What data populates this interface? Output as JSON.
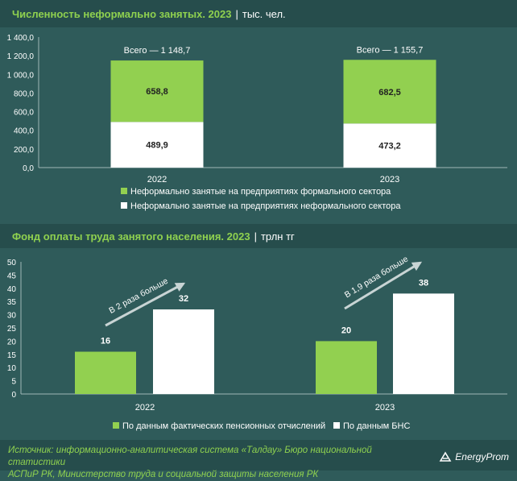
{
  "chart1": {
    "title": "Численность неформально занятых. 2023",
    "unit": "тыс. чел.",
    "chart_data": {
      "type": "bar",
      "stacked": true,
      "categories": [
        "2022",
        "2023"
      ],
      "series": [
        {
          "name": "Неформально занятые на предприятиях неформального сектора",
          "values": [
            489.9,
            473.2
          ],
          "color": "#ffffff"
        },
        {
          "name": "Неформально занятые на предприятиях формального сектора",
          "values": [
            658.8,
            682.5
          ],
          "color": "#92d050"
        }
      ],
      "value_labels": [
        [
          "489,9",
          "473,2"
        ],
        [
          "658,8",
          "682,5"
        ]
      ],
      "totals": [
        "Всего — 1 148,7",
        "Всего — 1 155,7"
      ],
      "ylim": [
        0,
        1400
      ],
      "yticks": [
        "0,0",
        "200,0",
        "400,0",
        "600,0",
        "800,0",
        "1 000,0",
        "1 200,0",
        "1 400,0"
      ],
      "legend": [
        "Неформально занятые на предприятиях формального сектора",
        "Неформально занятые на предприятиях неформального сектора"
      ],
      "legend_position": "bottom"
    }
  },
  "chart2": {
    "title": "Фонд оплаты труда занятого населения. 2023",
    "unit": "трлн тг",
    "chart_data": {
      "type": "bar",
      "categories": [
        "2022",
        "2023"
      ],
      "series": [
        {
          "name": "По данным фактических пенсионных отчислений",
          "values": [
            16,
            20
          ],
          "color": "#92d050"
        },
        {
          "name": "По данным БНС",
          "values": [
            32,
            38
          ],
          "color": "#ffffff"
        }
      ],
      "annotations": [
        "В 2 раза больше",
        "В 1,9 раза больше"
      ],
      "ylim": [
        0,
        50
      ],
      "yticks": [
        "0",
        "5",
        "10",
        "15",
        "20",
        "25",
        "30",
        "35",
        "40",
        "45",
        "50"
      ],
      "legend": [
        "По данным фактических пенсионных отчислений",
        "По данным БНС"
      ],
      "legend_position": "bottom"
    }
  },
  "footer": {
    "source_line1": "Источник: информационно-аналитическая система «Талдау» Бюро национальной статистики",
    "source_line2": "АСПиР РК, Министерство труда и социальной защиты населения РК",
    "logo_text": "EnergyProm"
  }
}
